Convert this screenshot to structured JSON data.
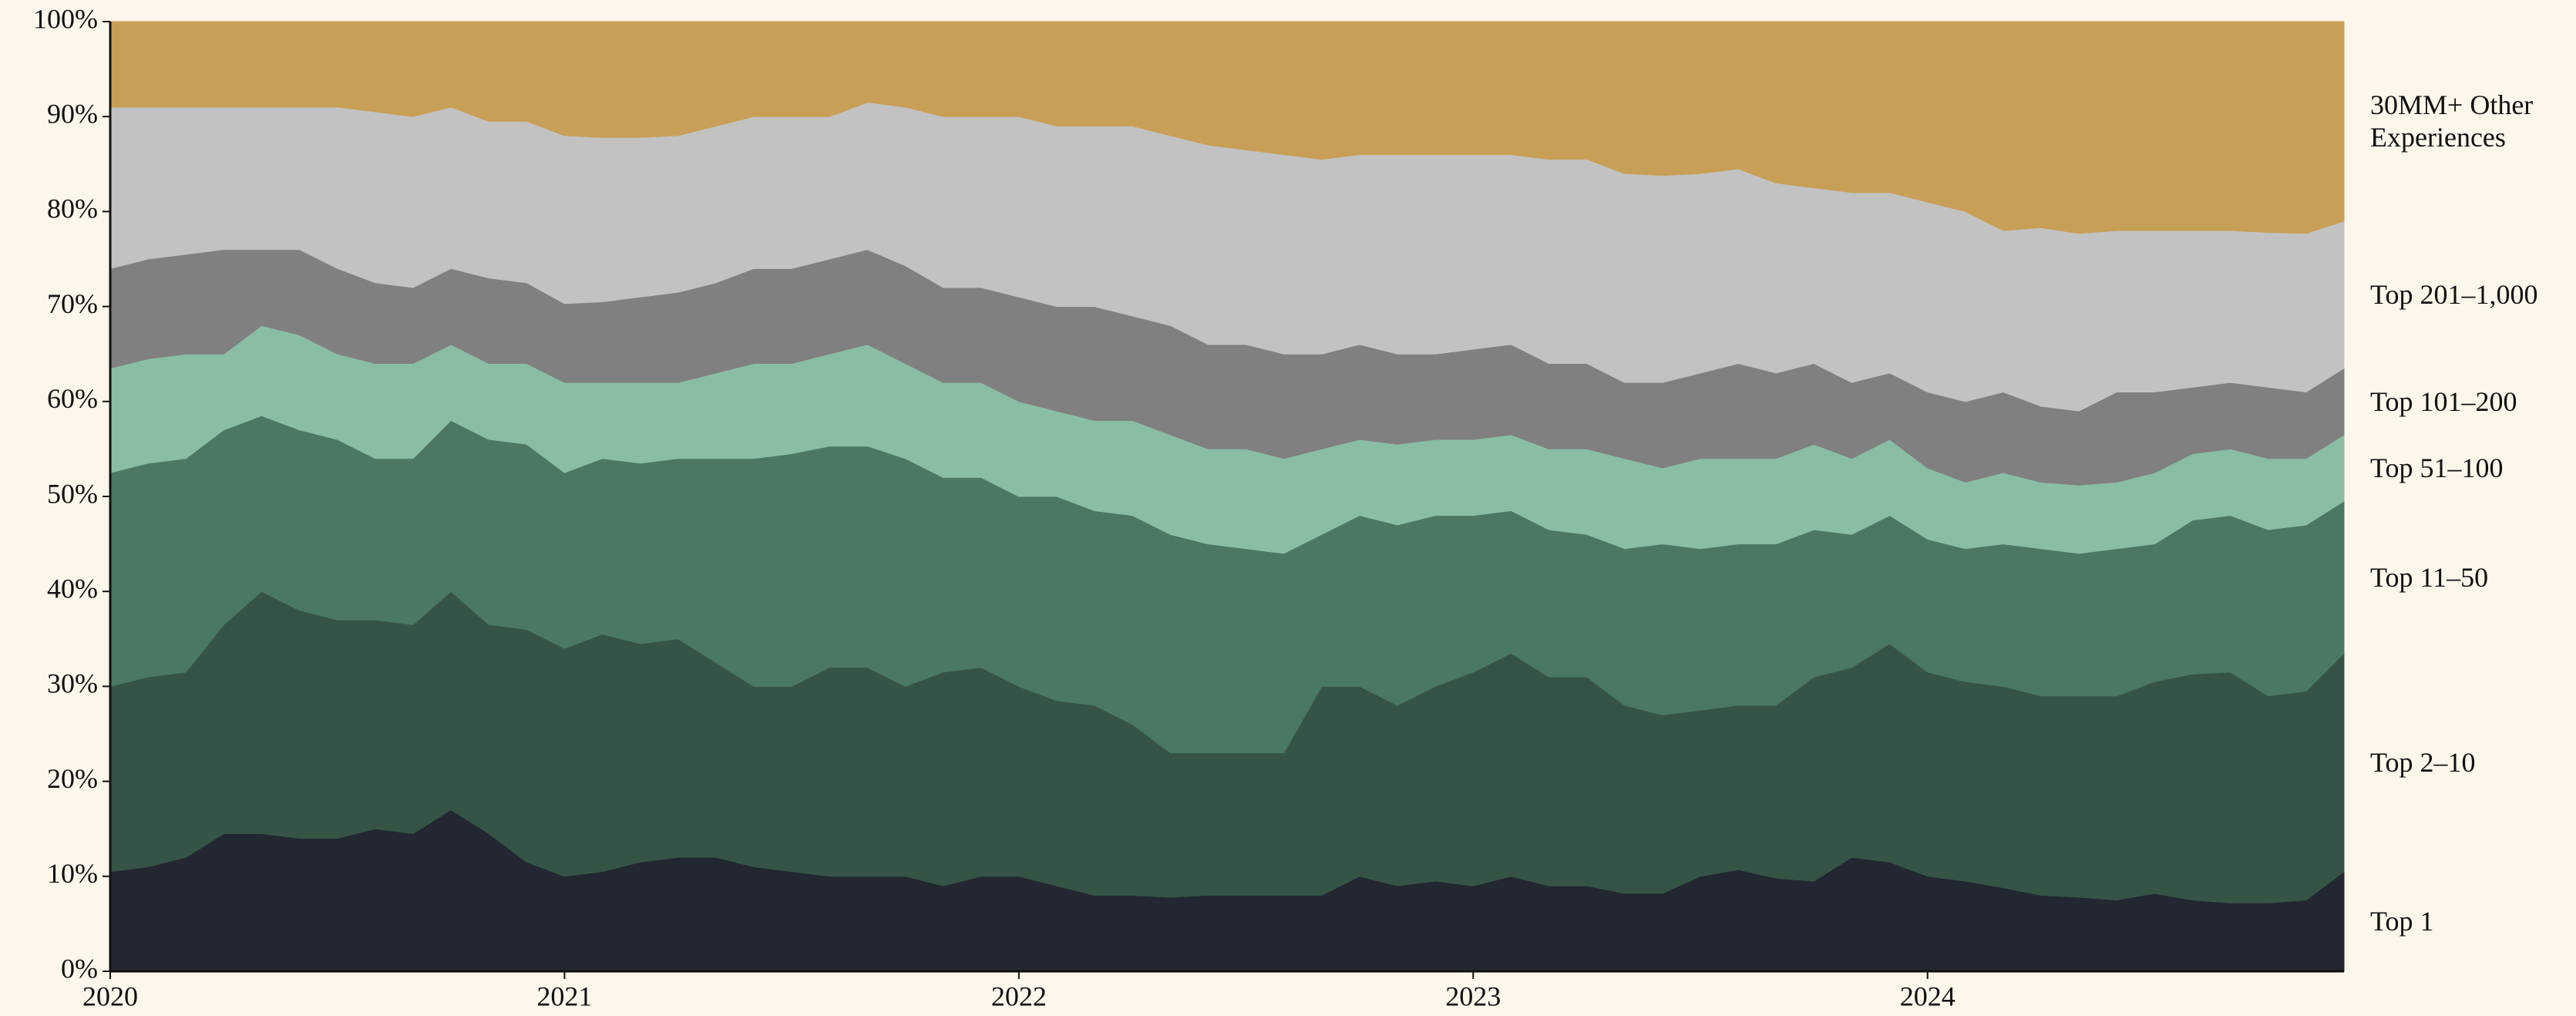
{
  "chart_data": {
    "type": "stacked-area",
    "categories": [
      "2020",
      null,
      null,
      null,
      null,
      null,
      null,
      null,
      null,
      null,
      null,
      null,
      "2021",
      null,
      null,
      null,
      null,
      null,
      null,
      null,
      null,
      null,
      null,
      null,
      "2022",
      null,
      null,
      null,
      null,
      null,
      null,
      null,
      null,
      null,
      null,
      null,
      "2023",
      null,
      null,
      null,
      null,
      null,
      null,
      null,
      null,
      null,
      null,
      null,
      "2024",
      null,
      null,
      null,
      null,
      null,
      null,
      null,
      null,
      null,
      null,
      null
    ],
    "ylim": [
      0,
      100
    ],
    "yticks": [
      {
        "value": 0,
        "label": "0%"
      },
      {
        "value": 10,
        "label": "10%"
      },
      {
        "value": 20,
        "label": "20%"
      },
      {
        "value": 30,
        "label": "30%"
      },
      {
        "value": 40,
        "label": "40%"
      },
      {
        "value": 50,
        "label": "50%"
      },
      {
        "value": 60,
        "label": "60%"
      },
      {
        "value": 70,
        "label": "70%"
      },
      {
        "value": 80,
        "label": "80%"
      },
      {
        "value": 90,
        "label": "90%"
      },
      {
        "value": 100,
        "label": "100%"
      }
    ],
    "legend": "right",
    "series": [
      {
        "name": "Top 1",
        "color": "#222731",
        "values": [
          10.5,
          11,
          12,
          14.5,
          14.5,
          14,
          14,
          15,
          14.5,
          17,
          14.5,
          11.5,
          10,
          10.5,
          11.5,
          12,
          12,
          11,
          10.5,
          10,
          10,
          10,
          9,
          10,
          10,
          9,
          8,
          8,
          7.8,
          8,
          8,
          8,
          8,
          10,
          9,
          9.5,
          9,
          10,
          9,
          9,
          8.2,
          8.2,
          10,
          10.7,
          9.8,
          9.5,
          12,
          11.5,
          10,
          9.5,
          8.8,
          8,
          7.8,
          7.5,
          8.2,
          7.5,
          7.2,
          7.2,
          7.5,
          10.5
        ]
      },
      {
        "name": "Top 2–10",
        "color": "#365446",
        "values": [
          19.5,
          20,
          19.5,
          22,
          25.5,
          24,
          23,
          22,
          22,
          23,
          22,
          24.5,
          24,
          25,
          23,
          23,
          20.5,
          19,
          19.5,
          22,
          22,
          20,
          22.5,
          22,
          20,
          19.5,
          20,
          18,
          15.2,
          15,
          15,
          15,
          22,
          20,
          19,
          20.5,
          22.5,
          23.5,
          22,
          22,
          19.8,
          18.8,
          17.5,
          17.3,
          18.2,
          21.5,
          20,
          23,
          21.5,
          21,
          21.2,
          21,
          21.2,
          21.5,
          22.3,
          23.8,
          24.3,
          21.8,
          22,
          23
        ]
      },
      {
        "name": "Top 11–50",
        "color": "#4a7862",
        "values": [
          22.5,
          22.5,
          22.5,
          20.5,
          18.5,
          19,
          19,
          17,
          17.5,
          18,
          19.5,
          19.5,
          18.5,
          18.5,
          19,
          19,
          21.5,
          24,
          24.5,
          23.3,
          23.3,
          24,
          20.5,
          20,
          20,
          21.5,
          20.5,
          22,
          23,
          22,
          21.5,
          21,
          16,
          18,
          19,
          18,
          16.5,
          15,
          15.5,
          15,
          16.5,
          18,
          17,
          17,
          17,
          15.5,
          14,
          13.5,
          14,
          14,
          15,
          15.5,
          15,
          15.5,
          14.5,
          16.2,
          16.5,
          17.5,
          17.5,
          16
        ]
      },
      {
        "name": "Top 51–100",
        "color": "#8abea4",
        "values": [
          11,
          11,
          11,
          8,
          9.5,
          10,
          9,
          10,
          10,
          8,
          8,
          8.5,
          9.5,
          8,
          8.5,
          8,
          9,
          10,
          9.5,
          9.7,
          10.7,
          10,
          10,
          10,
          10,
          9,
          9.5,
          10,
          10.5,
          10,
          10.5,
          10,
          9,
          8,
          8.5,
          8,
          8,
          8,
          8.5,
          9,
          9.5,
          8,
          9.5,
          9,
          9,
          9,
          8,
          8,
          7.5,
          7,
          7.5,
          7,
          7.2,
          7,
          7.5,
          7,
          7,
          7.5,
          7,
          7
        ]
      },
      {
        "name": "Top 101–200",
        "color": "#808080",
        "values": [
          10.5,
          10.5,
          10.5,
          11,
          8,
          9,
          9,
          8.5,
          8,
          8,
          9,
          8.5,
          8.3,
          8.5,
          9,
          9.5,
          9.5,
          10,
          10,
          10,
          10,
          10.3,
          10,
          10,
          11,
          11,
          12,
          11,
          11.5,
          11,
          11,
          11,
          10,
          10,
          9.5,
          9,
          9.5,
          9.5,
          9,
          9,
          8,
          9,
          9,
          10,
          9,
          8.5,
          8,
          7,
          8,
          8.5,
          8.5,
          8,
          7.8,
          9.5,
          8.5,
          7,
          7,
          7.5,
          7,
          7
        ]
      },
      {
        "name": "Top 201–1,000",
        "color": "#c2c2c2",
        "values": [
          17,
          16,
          15.5,
          15,
          15,
          15,
          17,
          18,
          18,
          17,
          16.5,
          17,
          17.7,
          17.3,
          16.8,
          16.5,
          16.5,
          16,
          16,
          15,
          15.5,
          16.7,
          18,
          18,
          19,
          19,
          19,
          20,
          20,
          21,
          20.5,
          21,
          20.5,
          20,
          21,
          21,
          20.5,
          20,
          21.5,
          21.5,
          22,
          21.8,
          21,
          20.5,
          20,
          18.5,
          20,
          19,
          20,
          20,
          17,
          18.8,
          18.7,
          17,
          17,
          16.5,
          16,
          16.3,
          16.7,
          15.5
        ]
      },
      {
        "name": "30MM+ Other Experiences",
        "color": "#c89f56",
        "values": [
          9,
          9,
          9,
          9,
          9,
          9,
          9,
          9.5,
          10,
          9,
          10.5,
          10.5,
          12,
          12.2,
          12.2,
          12,
          11,
          10,
          10,
          10,
          8.5,
          9,
          10,
          10,
          10,
          11,
          11,
          11,
          12,
          13,
          13.5,
          14,
          14.5,
          14,
          14,
          14,
          14,
          14,
          14.5,
          14.5,
          16,
          16.2,
          16,
          15.5,
          17,
          17.5,
          18,
          18,
          19,
          20,
          22,
          21.7,
          22.3,
          22,
          22,
          22,
          22,
          22.2,
          22.3,
          21
        ]
      }
    ]
  }
}
